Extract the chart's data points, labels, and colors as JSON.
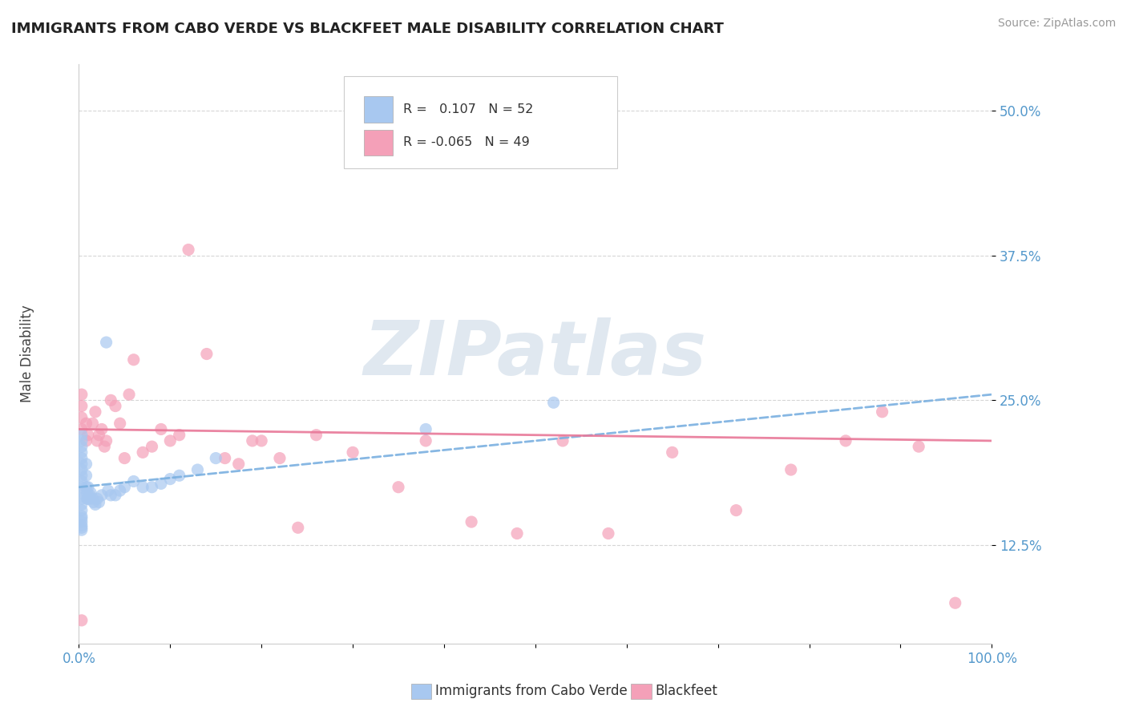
{
  "title": "IMMIGRANTS FROM CABO VERDE VS BLACKFEET MALE DISABILITY CORRELATION CHART",
  "source": "Source: ZipAtlas.com",
  "ylabel": "Male Disability",
  "xlim": [
    0.0,
    1.0
  ],
  "ylim": [
    0.04,
    0.54
  ],
  "y_ticks": [
    0.125,
    0.25,
    0.375,
    0.5
  ],
  "y_tick_labels": [
    "12.5%",
    "25.0%",
    "37.5%",
    "50.0%"
  ],
  "x_ticks": [
    0.0,
    0.1,
    0.2,
    0.3,
    0.4,
    0.5,
    0.6,
    0.7,
    0.8,
    0.9,
    1.0
  ],
  "x_tick_labels": [
    "0.0%",
    "",
    "",
    "",
    "",
    "",
    "",
    "",
    "",
    "",
    "100.0%"
  ],
  "legend_r1_label": "R = ",
  "legend_r1_val": " 0.107",
  "legend_n1": "N = 52",
  "legend_r2_label": "R = ",
  "legend_r2_val": "-0.065",
  "legend_n2": "N = 49",
  "cabo_verde_color": "#a8c8f0",
  "blackfeet_color": "#f4a0b8",
  "cabo_verde_trend_color": "#7ab0e0",
  "blackfeet_trend_color": "#e87898",
  "background_color": "#ffffff",
  "grid_color": "#cccccc",
  "watermark_text": "ZIPatlas",
  "watermark_color": "#e0e8f0",
  "tick_color": "#5599cc",
  "cabo_verde_x": [
    0.003,
    0.003,
    0.003,
    0.003,
    0.003,
    0.003,
    0.003,
    0.003,
    0.003,
    0.003,
    0.003,
    0.003,
    0.003,
    0.003,
    0.003,
    0.003,
    0.003,
    0.003,
    0.003,
    0.003,
    0.008,
    0.008,
    0.008,
    0.009,
    0.009,
    0.01,
    0.01,
    0.011,
    0.012,
    0.013,
    0.015,
    0.016,
    0.018,
    0.02,
    0.022,
    0.025,
    0.03,
    0.032,
    0.035,
    0.04,
    0.045,
    0.05,
    0.06,
    0.07,
    0.08,
    0.09,
    0.1,
    0.11,
    0.13,
    0.15,
    0.38,
    0.52
  ],
  "cabo_verde_y": [
    0.22,
    0.215,
    0.21,
    0.205,
    0.2,
    0.195,
    0.19,
    0.185,
    0.18,
    0.175,
    0.17,
    0.165,
    0.16,
    0.155,
    0.15,
    0.148,
    0.145,
    0.142,
    0.14,
    0.138,
    0.195,
    0.185,
    0.175,
    0.17,
    0.165,
    0.175,
    0.165,
    0.165,
    0.168,
    0.17,
    0.165,
    0.162,
    0.16,
    0.165,
    0.162,
    0.168,
    0.3,
    0.172,
    0.168,
    0.168,
    0.172,
    0.175,
    0.18,
    0.175,
    0.175,
    0.178,
    0.182,
    0.185,
    0.19,
    0.2,
    0.225,
    0.248
  ],
  "blackfeet_x": [
    0.003,
    0.003,
    0.003,
    0.003,
    0.003,
    0.008,
    0.008,
    0.01,
    0.015,
    0.018,
    0.02,
    0.022,
    0.025,
    0.028,
    0.03,
    0.035,
    0.04,
    0.045,
    0.05,
    0.055,
    0.06,
    0.07,
    0.08,
    0.09,
    0.1,
    0.11,
    0.12,
    0.14,
    0.16,
    0.175,
    0.19,
    0.2,
    0.22,
    0.24,
    0.26,
    0.3,
    0.35,
    0.38,
    0.43,
    0.48,
    0.53,
    0.58,
    0.65,
    0.72,
    0.78,
    0.84,
    0.88,
    0.92,
    0.96
  ],
  "blackfeet_y": [
    0.255,
    0.245,
    0.235,
    0.225,
    0.06,
    0.23,
    0.215,
    0.22,
    0.23,
    0.24,
    0.215,
    0.22,
    0.225,
    0.21,
    0.215,
    0.25,
    0.245,
    0.23,
    0.2,
    0.255,
    0.285,
    0.205,
    0.21,
    0.225,
    0.215,
    0.22,
    0.38,
    0.29,
    0.2,
    0.195,
    0.215,
    0.215,
    0.2,
    0.14,
    0.22,
    0.205,
    0.175,
    0.215,
    0.145,
    0.135,
    0.215,
    0.135,
    0.205,
    0.155,
    0.19,
    0.215,
    0.24,
    0.21,
    0.075
  ]
}
